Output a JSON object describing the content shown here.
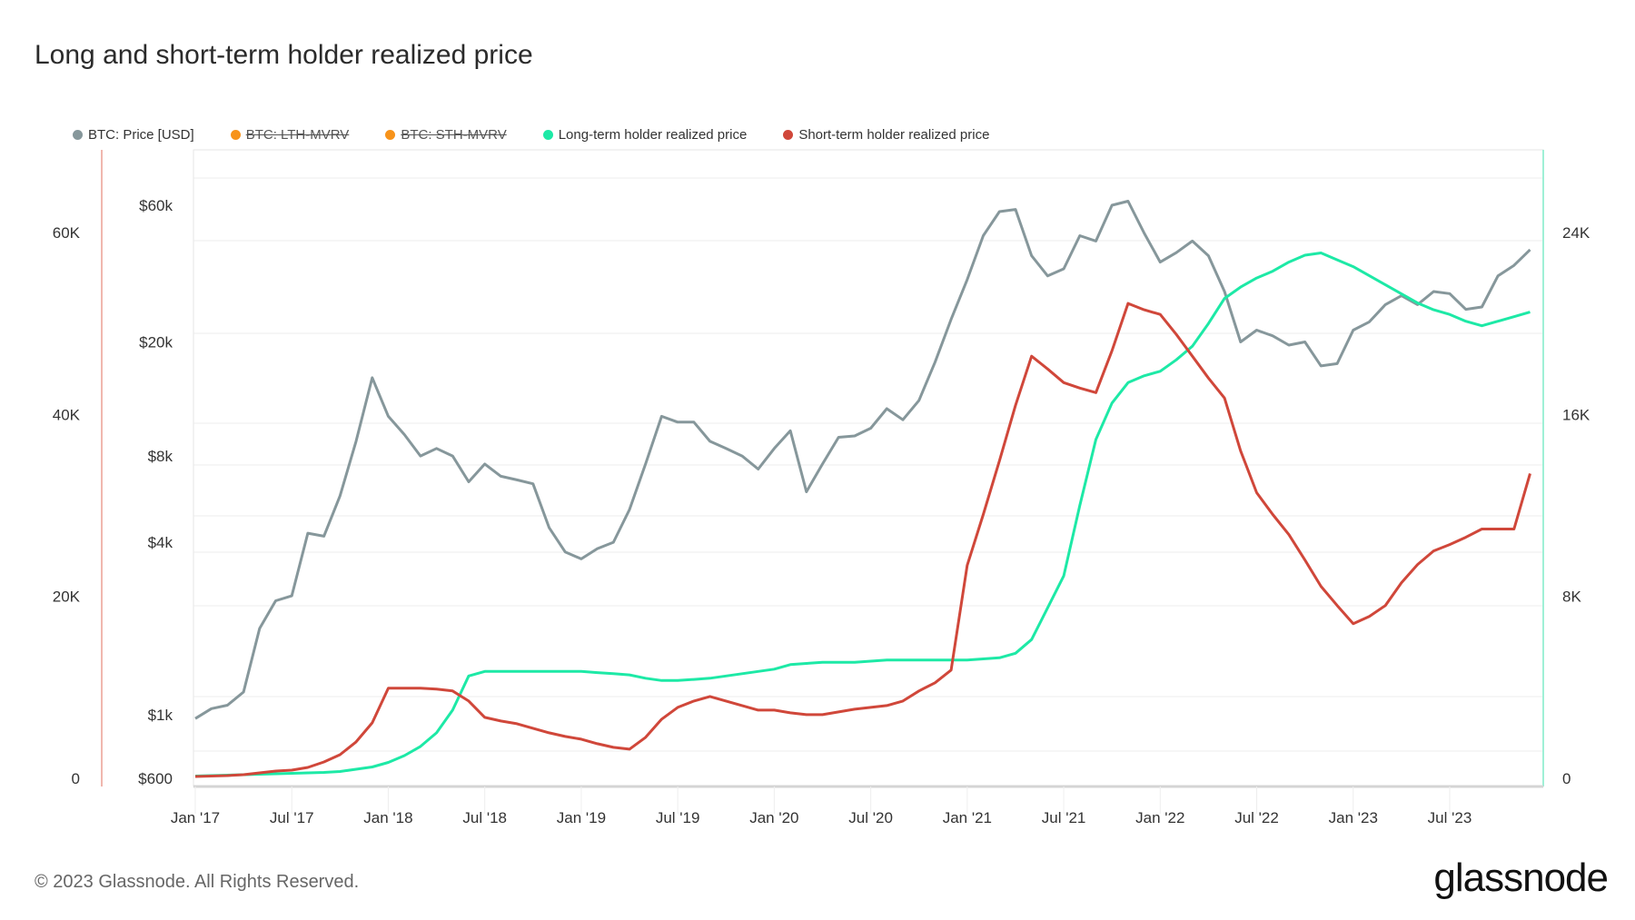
{
  "title": "Long and short-term holder realized price",
  "legend": [
    {
      "label": "BTC: Price [USD]",
      "color": "#86979b",
      "hidden": false
    },
    {
      "label": "BTC: LTH-MVRV",
      "color": "#f7931a",
      "hidden": true
    },
    {
      "label": "BTC: STH-MVRV",
      "color": "#f7931a",
      "hidden": true
    },
    {
      "label": "Long-term holder realized price",
      "color": "#1de9a6",
      "hidden": false
    },
    {
      "label": "Short-term holder realized price",
      "color": "#d0473a",
      "hidden": false
    }
  ],
  "footer": "© 2023 Glassnode. All Rights Reserved.",
  "logo": "glassnode",
  "chart_data": {
    "type": "line",
    "title": "Long and short-term holder realized price",
    "x_start": "2017-01",
    "x_step": "month",
    "x_ticks": [
      "Jan '17",
      "Jul '17",
      "Jan '18",
      "Jul '18",
      "Jan '19",
      "Jul '19",
      "Jan '20",
      "Jul '20",
      "Jan '21",
      "Jul '21",
      "Jan '22",
      "Jul '22",
      "Jan '23",
      "Jul '23"
    ],
    "axes": {
      "price_log": {
        "ticks": [
          "$600",
          "$1k",
          "$4k",
          "$8k",
          "$20k",
          "$60k"
        ],
        "tick_values": [
          600,
          1000,
          4000,
          8000,
          20000,
          60000
        ],
        "scale": "log"
      },
      "left": {
        "ticks": [
          "0",
          "20K",
          "40K",
          "60K"
        ],
        "range": [
          0,
          60000
        ]
      },
      "right": {
        "ticks": [
          "0",
          "8K",
          "16K",
          "24K"
        ],
        "range": [
          0,
          24000
        ]
      }
    },
    "grid": true,
    "legend_position": "top",
    "series": [
      {
        "name": "BTC: Price [USD]",
        "axis": "price_log",
        "color": "#86979b",
        "values": [
          970,
          1050,
          1080,
          1200,
          2000,
          2500,
          2600,
          4300,
          4200,
          5800,
          9000,
          15000,
          11000,
          9500,
          8000,
          8500,
          8000,
          6500,
          7500,
          6800,
          6600,
          6400,
          4500,
          3700,
          3500,
          3800,
          4000,
          5200,
          7500,
          11000,
          10500,
          10500,
          9000,
          8500,
          8000,
          7200,
          8500,
          9800,
          6000,
          7500,
          9300,
          9400,
          10000,
          11700,
          10700,
          12500,
          17000,
          24000,
          33000,
          47000,
          57000,
          58000,
          40000,
          34000,
          36000,
          47000,
          45000,
          60000,
          62000,
          48000,
          38000,
          41000,
          45000,
          40000,
          30000,
          20000,
          22000,
          21000,
          19500,
          20000,
          16500,
          16800,
          22000,
          23500,
          27000,
          29000,
          27000,
          30000,
          29500,
          26000,
          26500,
          34000,
          37000,
          42000
        ]
      },
      {
        "name": "Long-term holder realized price",
        "axis": "right",
        "color": "#1de9a6",
        "values": [
          100,
          120,
          140,
          160,
          180,
          200,
          220,
          240,
          260,
          300,
          400,
          500,
          700,
          1000,
          1400,
          2000,
          3000,
          4500,
          4700,
          4700,
          4700,
          4700,
          4700,
          4700,
          4700,
          4650,
          4600,
          4550,
          4400,
          4300,
          4300,
          4350,
          4400,
          4500,
          4600,
          4700,
          4800,
          5000,
          5050,
          5100,
          5100,
          5100,
          5150,
          5200,
          5200,
          5200,
          5200,
          5200,
          5200,
          5250,
          5300,
          5500,
          6100,
          7500,
          8900,
          12000,
          14900,
          16500,
          17400,
          17700,
          17900,
          18400,
          19000,
          20000,
          21100,
          21600,
          22000,
          22300,
          22700,
          23000,
          23100,
          22800,
          22500,
          22100,
          21700,
          21300,
          20900,
          20600,
          20400,
          20100,
          19900,
          20100,
          20300,
          20500
        ]
      },
      {
        "name": "Short-term holder realized price",
        "axis": "left",
        "color": "#d0473a",
        "values": [
          200,
          250,
          300,
          400,
          600,
          800,
          900,
          1200,
          1800,
          2600,
          4000,
          6100,
          9900,
          9900,
          9900,
          9800,
          9600,
          8500,
          6700,
          6300,
          6000,
          5500,
          5000,
          4600,
          4300,
          3800,
          3400,
          3200,
          4500,
          6500,
          7800,
          8500,
          9000,
          8500,
          8000,
          7500,
          7500,
          7200,
          7000,
          7000,
          7300,
          7600,
          7800,
          8000,
          8500,
          9600,
          10500,
          11900,
          23400,
          29000,
          34900,
          41000,
          46400,
          45000,
          43500,
          42900,
          42400,
          47000,
          52200,
          51500,
          51000,
          48800,
          46400,
          44000,
          41800,
          36000,
          31400,
          29000,
          26800,
          24000,
          21100,
          19000,
          17000,
          17800,
          19000,
          21500,
          23500,
          25000,
          25700,
          26500,
          27400,
          27400,
          27400,
          33500
        ]
      }
    ]
  }
}
